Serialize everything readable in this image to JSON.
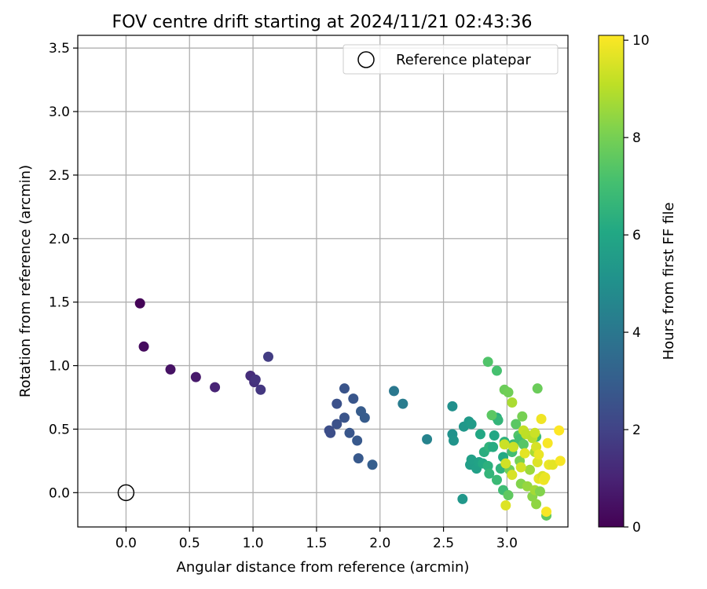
{
  "chart_data": {
    "type": "scatter",
    "title": "FOV centre drift starting at 2024/11/21 02:43:36",
    "xlabel": "Angular distance from reference (arcmin)",
    "ylabel": "Rotation from reference (arcmin)",
    "xlim": [
      -0.38,
      3.48
    ],
    "ylim": [
      -0.27,
      3.6
    ],
    "xticks": [
      0.0,
      0.5,
      1.0,
      1.5,
      2.0,
      2.5,
      3.0
    ],
    "xtick_labels": [
      "0.0",
      "0.5",
      "1.0",
      "1.5",
      "2.0",
      "2.5",
      "3.0"
    ],
    "yticks": [
      0.0,
      0.5,
      1.0,
      1.5,
      2.0,
      2.5,
      3.0,
      3.5
    ],
    "ytick_labels": [
      "0.0",
      "0.5",
      "1.0",
      "1.5",
      "2.0",
      "2.5",
      "3.0",
      "3.5"
    ],
    "grid": true,
    "legend": {
      "placement": "top-right",
      "label": "Reference platepar"
    },
    "reference_point": {
      "x": 0.0,
      "y": 0.0
    },
    "colorbar": {
      "label": "Hours from first FF file",
      "colormap": "viridis",
      "range": [
        0,
        10.1
      ],
      "ticks": [
        0,
        2,
        4,
        6,
        8,
        10
      ],
      "tick_labels": [
        "0",
        "2",
        "4",
        "6",
        "8",
        "10"
      ]
    },
    "points": [
      {
        "x": 0.11,
        "y": 1.49,
        "c": 0.1
      },
      {
        "x": 0.14,
        "y": 1.15,
        "c": 0.3
      },
      {
        "x": 0.35,
        "y": 0.97,
        "c": 0.5
      },
      {
        "x": 0.55,
        "y": 0.91,
        "c": 0.7
      },
      {
        "x": 0.7,
        "y": 0.83,
        "c": 1.0
      },
      {
        "x": 0.98,
        "y": 0.92,
        "c": 1.3
      },
      {
        "x": 1.01,
        "y": 0.87,
        "c": 1.4
      },
      {
        "x": 1.02,
        "y": 0.89,
        "c": 1.5
      },
      {
        "x": 1.06,
        "y": 0.81,
        "c": 1.6
      },
      {
        "x": 1.12,
        "y": 1.07,
        "c": 1.8
      },
      {
        "x": 1.6,
        "y": 0.49,
        "c": 2.4
      },
      {
        "x": 1.61,
        "y": 0.47,
        "c": 2.4
      },
      {
        "x": 1.66,
        "y": 0.54,
        "c": 2.5
      },
      {
        "x": 1.66,
        "y": 0.7,
        "c": 2.5
      },
      {
        "x": 1.72,
        "y": 0.82,
        "c": 2.6
      },
      {
        "x": 1.72,
        "y": 0.59,
        "c": 2.6
      },
      {
        "x": 1.76,
        "y": 0.47,
        "c": 2.7
      },
      {
        "x": 1.79,
        "y": 0.74,
        "c": 2.7
      },
      {
        "x": 1.82,
        "y": 0.41,
        "c": 2.8
      },
      {
        "x": 1.83,
        "y": 0.27,
        "c": 2.8
      },
      {
        "x": 1.85,
        "y": 0.64,
        "c": 2.9
      },
      {
        "x": 1.88,
        "y": 0.59,
        "c": 2.9
      },
      {
        "x": 1.94,
        "y": 0.22,
        "c": 3.0
      },
      {
        "x": 2.11,
        "y": 0.8,
        "c": 4.0
      },
      {
        "x": 2.18,
        "y": 0.7,
        "c": 4.2
      },
      {
        "x": 2.37,
        "y": 0.42,
        "c": 4.5
      },
      {
        "x": 2.57,
        "y": 0.68,
        "c": 5.0
      },
      {
        "x": 2.57,
        "y": 0.46,
        "c": 5.1
      },
      {
        "x": 2.58,
        "y": 0.41,
        "c": 5.2
      },
      {
        "x": 2.65,
        "y": -0.05,
        "c": 5.3
      },
      {
        "x": 2.66,
        "y": 0.52,
        "c": 5.3
      },
      {
        "x": 2.7,
        "y": 0.56,
        "c": 5.4
      },
      {
        "x": 2.72,
        "y": 0.54,
        "c": 5.5
      },
      {
        "x": 2.71,
        "y": 0.22,
        "c": 5.6
      },
      {
        "x": 2.72,
        "y": 0.26,
        "c": 5.7
      },
      {
        "x": 2.76,
        "y": 0.19,
        "c": 5.7
      },
      {
        "x": 2.78,
        "y": 0.24,
        "c": 5.8
      },
      {
        "x": 2.79,
        "y": 0.46,
        "c": 6.0
      },
      {
        "x": 2.81,
        "y": 0.23,
        "c": 6.1
      },
      {
        "x": 2.82,
        "y": 0.32,
        "c": 6.3
      },
      {
        "x": 2.85,
        "y": 0.21,
        "c": 6.4
      },
      {
        "x": 2.86,
        "y": 0.15,
        "c": 6.6
      },
      {
        "x": 2.86,
        "y": 0.36,
        "c": 6.5
      },
      {
        "x": 2.89,
        "y": 0.36,
        "c": 6.2
      },
      {
        "x": 2.9,
        "y": 0.45,
        "c": 6.0
      },
      {
        "x": 2.92,
        "y": 0.59,
        "c": 6.3
      },
      {
        "x": 2.93,
        "y": 0.57,
        "c": 6.6
      },
      {
        "x": 2.92,
        "y": 0.1,
        "c": 6.8
      },
      {
        "x": 2.95,
        "y": 0.19,
        "c": 6.5
      },
      {
        "x": 2.97,
        "y": 0.28,
        "c": 6.1
      },
      {
        "x": 2.97,
        "y": 0.02,
        "c": 6.9
      },
      {
        "x": 2.98,
        "y": 0.4,
        "c": 6.4
      },
      {
        "x": 2.85,
        "y": 1.03,
        "c": 7.3
      },
      {
        "x": 2.92,
        "y": 0.96,
        "c": 7.1
      },
      {
        "x": 2.88,
        "y": 0.61,
        "c": 7.5
      },
      {
        "x": 2.98,
        "y": 0.81,
        "c": 7.8
      },
      {
        "x": 3.01,
        "y": 0.79,
        "c": 7.9
      },
      {
        "x": 3.01,
        "y": -0.02,
        "c": 7.6
      },
      {
        "x": 3.02,
        "y": 0.18,
        "c": 7.9
      },
      {
        "x": 3.04,
        "y": 0.32,
        "c": 7.0
      },
      {
        "x": 3.05,
        "y": 0.38,
        "c": 6.8
      },
      {
        "x": 3.07,
        "y": 0.54,
        "c": 7.5
      },
      {
        "x": 3.09,
        "y": 0.45,
        "c": 7.3
      },
      {
        "x": 3.1,
        "y": 0.42,
        "c": 7.0
      },
      {
        "x": 3.1,
        "y": 0.25,
        "c": 8.0
      },
      {
        "x": 3.11,
        "y": 0.07,
        "c": 8.2
      },
      {
        "x": 3.12,
        "y": 0.6,
        "c": 8.0
      },
      {
        "x": 3.13,
        "y": 0.38,
        "c": 7.4
      },
      {
        "x": 3.16,
        "y": 0.05,
        "c": 8.5
      },
      {
        "x": 3.18,
        "y": 0.18,
        "c": 8.6
      },
      {
        "x": 3.2,
        "y": -0.03,
        "c": 8.3
      },
      {
        "x": 3.22,
        "y": 0.02,
        "c": 8.7
      },
      {
        "x": 3.22,
        "y": 0.32,
        "c": 8.8
      },
      {
        "x": 3.23,
        "y": 0.44,
        "c": 6.9
      },
      {
        "x": 3.24,
        "y": 0.82,
        "c": 7.8
      },
      {
        "x": 3.23,
        "y": -0.09,
        "c": 8.4
      },
      {
        "x": 3.26,
        "y": 0.01,
        "c": 8.2
      },
      {
        "x": 3.31,
        "y": -0.18,
        "c": 7.6
      },
      {
        "x": 3.04,
        "y": 0.71,
        "c": 8.8
      },
      {
        "x": 3.05,
        "y": 0.36,
        "c": 9.3
      },
      {
        "x": 3.04,
        "y": 0.14,
        "c": 9.5
      },
      {
        "x": 2.98,
        "y": 0.38,
        "c": 9.3
      },
      {
        "x": 2.99,
        "y": 0.23,
        "c": 9.4
      },
      {
        "x": 2.99,
        "y": -0.1,
        "c": 9.6
      },
      {
        "x": 3.11,
        "y": 0.2,
        "c": 9.4
      },
      {
        "x": 3.13,
        "y": 0.49,
        "c": 9.2
      },
      {
        "x": 3.14,
        "y": 0.31,
        "c": 9.7
      },
      {
        "x": 3.15,
        "y": 0.46,
        "c": 9.1
      },
      {
        "x": 3.2,
        "y": 0.43,
        "c": 9.0
      },
      {
        "x": 3.22,
        "y": 0.47,
        "c": 9.3
      },
      {
        "x": 3.23,
        "y": 0.36,
        "c": 9.5
      },
      {
        "x": 3.24,
        "y": 0.24,
        "c": 9.6
      },
      {
        "x": 3.25,
        "y": 0.3,
        "c": 9.8
      },
      {
        "x": 3.25,
        "y": 0.11,
        "c": 9.7
      },
      {
        "x": 3.27,
        "y": 0.58,
        "c": 9.9
      },
      {
        "x": 3.28,
        "y": 0.13,
        "c": 9.5
      },
      {
        "x": 3.29,
        "y": 0.1,
        "c": 9.9
      },
      {
        "x": 3.3,
        "y": 0.12,
        "c": 9.8
      },
      {
        "x": 3.31,
        "y": -0.15,
        "c": 10.0
      },
      {
        "x": 3.32,
        "y": 0.39,
        "c": 10.0
      },
      {
        "x": 3.33,
        "y": 0.22,
        "c": 9.8
      },
      {
        "x": 3.36,
        "y": 0.22,
        "c": 9.7
      },
      {
        "x": 3.41,
        "y": 0.49,
        "c": 10.1
      },
      {
        "x": 3.42,
        "y": 0.25,
        "c": 10.0
      }
    ]
  }
}
